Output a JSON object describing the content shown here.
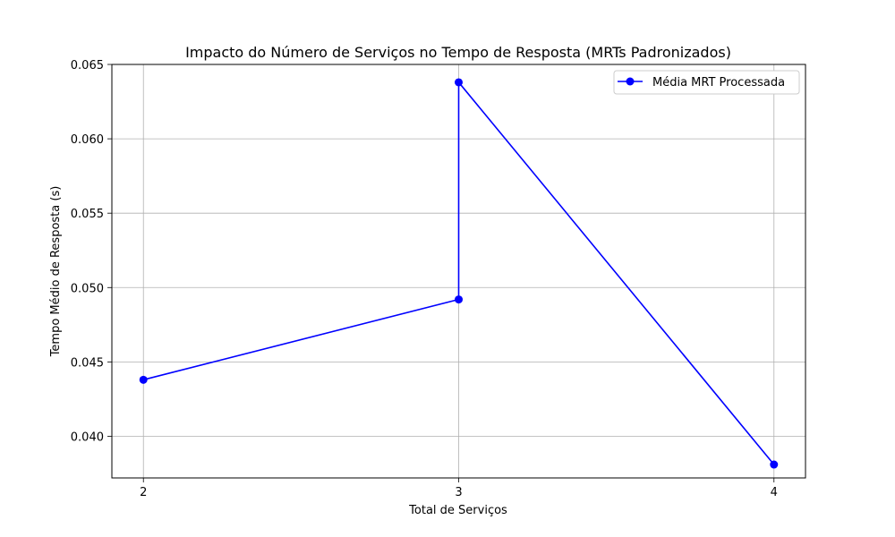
{
  "chart_data": {
    "type": "line",
    "title": "Impacto do Número de Serviços no Tempo de Resposta (MRTs Padronizados)",
    "xlabel": "Total de Serviços",
    "ylabel": "Tempo Médio de Resposta (s)",
    "xlim": [
      1.9,
      4.1
    ],
    "ylim": [
      0.0372,
      0.065
    ],
    "x_ticks": [
      2,
      3,
      4
    ],
    "x_tick_labels": [
      "2",
      "3",
      "4"
    ],
    "y_ticks": [
      0.04,
      0.045,
      0.05,
      0.055,
      0.06,
      0.065
    ],
    "y_tick_labels": [
      "0.040",
      "0.045",
      "0.050",
      "0.055",
      "0.060",
      "0.065"
    ],
    "grid": true,
    "legend_position": "top-right",
    "series": [
      {
        "name": "Média MRT Processada",
        "color": "#0000ff",
        "marker": "circle",
        "x": [
          2,
          3,
          3,
          4
        ],
        "y": [
          0.0438,
          0.0492,
          0.0638,
          0.0381
        ]
      }
    ]
  }
}
